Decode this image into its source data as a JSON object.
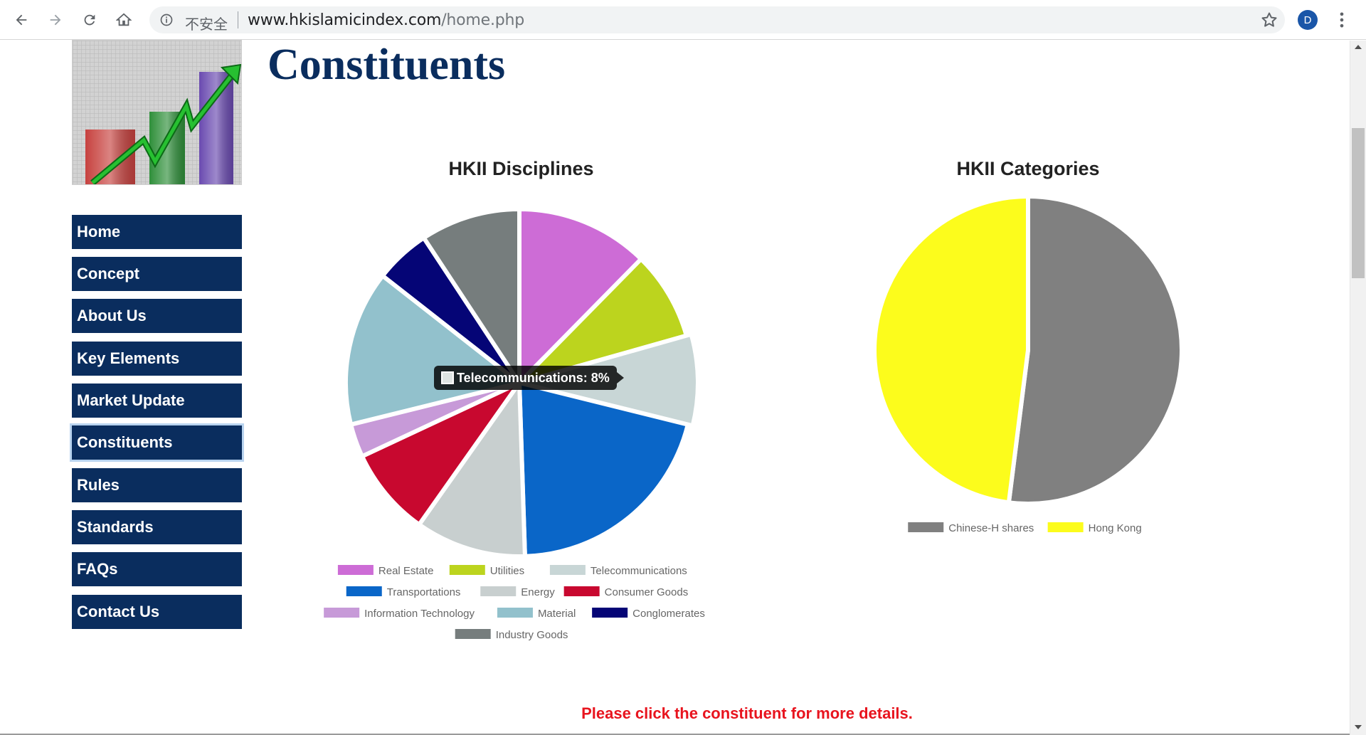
{
  "browser": {
    "security_label": "不安全",
    "url_host": "www.hkislamicindex.com",
    "url_path": "/home.php",
    "profile_initial": "D"
  },
  "sidebar": {
    "items": [
      {
        "label": "Home",
        "active": false
      },
      {
        "label": "Concept",
        "active": false
      },
      {
        "label": "About Us",
        "active": false
      },
      {
        "label": "Key Elements",
        "active": false
      },
      {
        "label": "Market Update",
        "active": false
      },
      {
        "label": "Constituents",
        "active": true
      },
      {
        "label": "Rules",
        "active": false
      },
      {
        "label": "Standards",
        "active": false
      },
      {
        "label": "FAQs",
        "active": false
      },
      {
        "label": "Contact Us",
        "active": false
      }
    ]
  },
  "page": {
    "title": "Constituents",
    "footer_note": "Please click the constituent for more details."
  },
  "tooltip": {
    "text": "Telecommunications: 8%"
  },
  "chart_data": [
    {
      "type": "pie",
      "title": "HKII Disciplines",
      "legend_position": "bottom",
      "slices": [
        {
          "name": "Real Estate",
          "value": 12,
          "color": "#cd6cd6"
        },
        {
          "name": "Utilities",
          "value": 8,
          "color": "#bcd41e"
        },
        {
          "name": "Telecommunications",
          "value": 8,
          "color": "#c8d6d6"
        },
        {
          "name": "Transportations",
          "value": 20,
          "color": "#0a66c8"
        },
        {
          "name": "Energy",
          "value": 10,
          "color": "#c8cfcf"
        },
        {
          "name": "Consumer Goods",
          "value": 8,
          "color": "#c8082f"
        },
        {
          "name": "Information Technology",
          "value": 3,
          "color": "#c79ad8"
        },
        {
          "name": "Material",
          "value": 14,
          "color": "#92c1cc"
        },
        {
          "name": "Conglomerates",
          "value": 5,
          "color": "#050576"
        },
        {
          "name": "Industry Goods",
          "value": 9,
          "color": "#767d7d"
        }
      ]
    },
    {
      "type": "pie",
      "title": "HKII Categories",
      "legend_position": "bottom",
      "slices": [
        {
          "name": "Chinese-H shares",
          "value": 52,
          "color": "#808080"
        },
        {
          "name": "Hong Kong",
          "value": 48,
          "color": "#fcfc1c"
        }
      ]
    }
  ]
}
